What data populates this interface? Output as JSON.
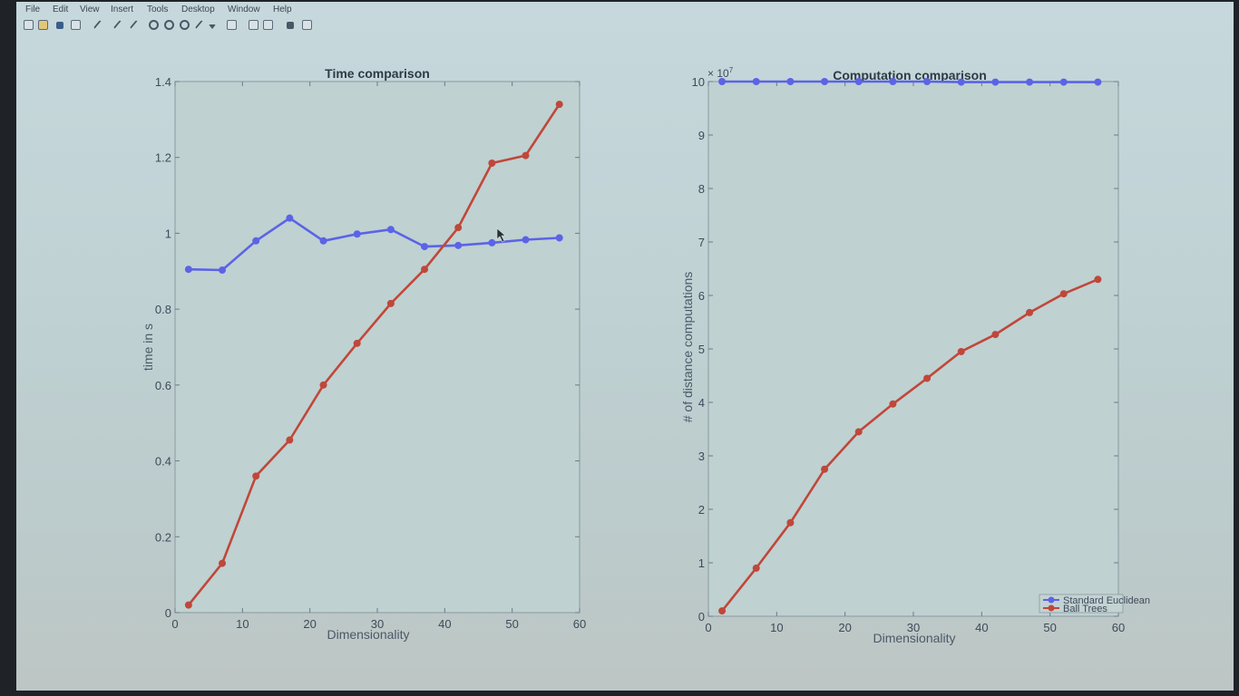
{
  "menu": [
    "File",
    "Edit",
    "View",
    "Insert",
    "Tools",
    "Desktop",
    "Window",
    "Help"
  ],
  "toolbar_icons": [
    "new-figure-icon",
    "open-file-icon",
    "save-icon",
    "print-icon",
    "pointer-icon",
    "zoom-in-icon",
    "zoom-out-icon",
    "pan-icon",
    "rotate-icon",
    "data-cursor-icon",
    "brush-icon",
    "dropdown-icon",
    "link-icon",
    "colorbar-icon",
    "legend-icon",
    "hide-plot-tools-icon",
    "show-plot-tools-icon"
  ],
  "colors": {
    "standard": "#5b63e6",
    "balltrees": "#c0473a",
    "axes_bg": "#bfd0d0",
    "text": "#3e4a5a"
  },
  "chart_data": [
    {
      "type": "line",
      "title": "Time comparison",
      "xlabel": "Dimensionality",
      "ylabel": "time in s",
      "xlim": [
        0,
        60
      ],
      "ylim": [
        0,
        1.4
      ],
      "xticks": [
        "0",
        "10",
        "20",
        "30",
        "40",
        "50",
        "60"
      ],
      "yticks": [
        "0",
        "0.2",
        "0.4",
        "0.6",
        "0.8",
        "1",
        "1.2",
        "1.4"
      ],
      "x": [
        2,
        7,
        12,
        17,
        22,
        27,
        32,
        37,
        42,
        47,
        52,
        57
      ],
      "series": [
        {
          "values": [
            0.905,
            0.903,
            0.98,
            1.04,
            0.98,
            0.998,
            1.01,
            0.965,
            0.968,
            0.975,
            0.983,
            0.988
          ]
        },
        {
          "values": [
            0.02,
            0.13,
            0.36,
            0.455,
            0.6,
            0.71,
            0.815,
            0.905,
            1.015,
            1.185,
            1.205,
            1.34
          ]
        }
      ],
      "grid": false,
      "legend": false
    },
    {
      "type": "line",
      "title": "Computation comparison",
      "xlabel": "Dimensionality",
      "ylabel": "# of distance computations",
      "xlim": [
        0,
        60
      ],
      "ylim": [
        0,
        10
      ],
      "y_multiplier": "× 10",
      "y_multiplier_exp": "7",
      "xticks": [
        "0",
        "10",
        "20",
        "30",
        "40",
        "50",
        "60"
      ],
      "yticks": [
        "0",
        "1",
        "2",
        "3",
        "4",
        "5",
        "6",
        "7",
        "8",
        "9",
        "10"
      ],
      "x": [
        2,
        7,
        12,
        17,
        22,
        27,
        32,
        37,
        42,
        47,
        52,
        57
      ],
      "series": [
        {
          "name": "Standard Euclidean",
          "values": [
            10.0,
            10.0,
            10.0,
            10.0,
            10.0,
            10.0,
            10.0,
            9.99,
            9.99,
            9.99,
            9.99,
            9.99
          ]
        },
        {
          "name": "Ball Trees",
          "values": [
            0.1,
            0.9,
            1.75,
            2.75,
            3.45,
            3.97,
            4.45,
            4.95,
            5.27,
            5.68,
            6.03,
            6.3
          ]
        }
      ],
      "grid": false,
      "legend": "bottom-right"
    }
  ]
}
